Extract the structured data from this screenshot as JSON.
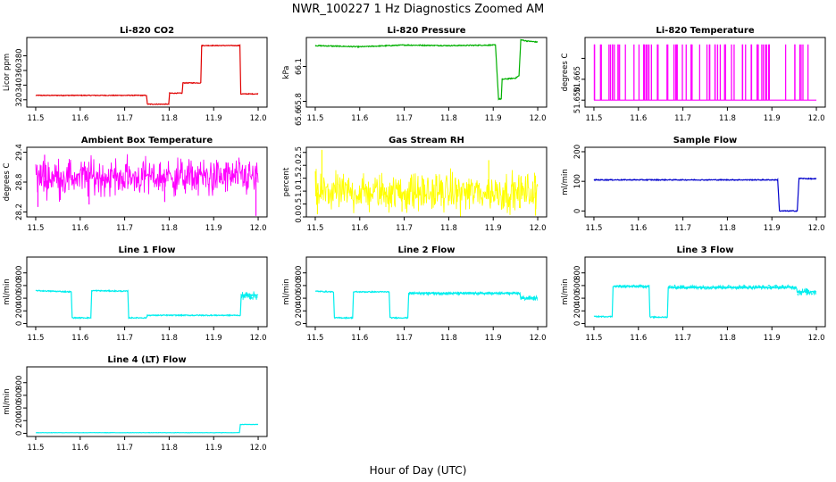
{
  "figure": {
    "title": "NWR_100227  1 Hz Diagnostics Zoomed AM",
    "xlabel": "Hour of Day (UTC)"
  },
  "chart_data": [
    {
      "id": "co2",
      "type": "line",
      "title": "Li-820 CO2",
      "ylabel": "Licor ppm",
      "color": "#e00000",
      "xlim": [
        11.48,
        12.02
      ],
      "ylim": [
        310,
        405
      ],
      "yticks": [
        320,
        340,
        360,
        380
      ],
      "xticks": [
        11.5,
        11.6,
        11.7,
        11.8,
        11.9,
        12.0
      ],
      "noise": 0.5,
      "points": [
        [
          11.5,
          326
        ],
        [
          11.749,
          326
        ],
        [
          11.751,
          314
        ],
        [
          11.799,
          314
        ],
        [
          11.801,
          329
        ],
        [
          11.829,
          329
        ],
        [
          11.831,
          343
        ],
        [
          11.871,
          343
        ],
        [
          11.873,
          394
        ],
        [
          11.959,
          394
        ],
        [
          11.961,
          328
        ],
        [
          12.0,
          328
        ]
      ]
    },
    {
      "id": "pressure",
      "type": "line",
      "title": "Li-820 Pressure",
      "ylabel": "kPa",
      "color": "#00b000",
      "xlim": [
        11.48,
        12.02
      ],
      "ylim": [
        65.75,
        66.35
      ],
      "yticks": [
        65.8,
        66.1
      ],
      "ytick_labels": [
        "65.8",
        "66.1"
      ],
      "extra_ytick_labels": [
        "65.6"
      ],
      "xticks": [
        11.5,
        11.6,
        11.7,
        11.8,
        11.9,
        12.0
      ],
      "noise": 0.004,
      "points": [
        [
          11.5,
          66.28
        ],
        [
          11.6,
          66.27
        ],
        [
          11.7,
          66.285
        ],
        [
          11.8,
          66.28
        ],
        [
          11.905,
          66.285
        ],
        [
          11.912,
          65.82
        ],
        [
          11.918,
          65.82
        ],
        [
          11.92,
          65.99
        ],
        [
          11.95,
          66.0
        ],
        [
          11.958,
          66.02
        ],
        [
          11.962,
          66.33
        ],
        [
          11.975,
          66.32
        ],
        [
          12.0,
          66.31
        ]
      ]
    },
    {
      "id": "li820temp",
      "type": "flicker",
      "title": "Li-820 Temperature",
      "ylabel": "degrees C",
      "color": "#ff00ff",
      "xlim": [
        11.48,
        12.02
      ],
      "ylim": [
        51.645,
        51.695
      ],
      "yticks": [
        51.65,
        51.665,
        51.68
      ],
      "ytick_labels": [
        "51.650",
        "51.665",
        ""
      ],
      "low": 51.65,
      "high": 51.69,
      "xticks": [
        11.5,
        11.6,
        11.7,
        11.8,
        11.9,
        12.0
      ],
      "flicker_count": 70
    },
    {
      "id": "ambient",
      "type": "noise",
      "title": "Ambient Box Temperature",
      "ylabel": "degrees C",
      "color": "#ff00ff",
      "xlim": [
        11.48,
        12.02
      ],
      "ylim": [
        28.1,
        29.5
      ],
      "yticks": [
        28.2,
        28.8,
        29.4
      ],
      "xticks": [
        11.5,
        11.6,
        11.7,
        11.8,
        11.9,
        12.0
      ],
      "mean": 28.9,
      "amp": 0.28,
      "spikes": [
        [
          11.505,
          28.3
        ],
        [
          11.62,
          28.35
        ],
        [
          11.79,
          28.4
        ],
        [
          11.995,
          28.12
        ],
        [
          11.52,
          29.35
        ]
      ]
    },
    {
      "id": "rh",
      "type": "noise",
      "title": "Gas Stream RH",
      "ylabel": "percent",
      "color": "#ffff00",
      "xlim": [
        11.48,
        12.02
      ],
      "ylim": [
        0.0,
        2.7
      ],
      "yticks": [
        0.0,
        0.5,
        1.0,
        1.5,
        2.0,
        2.5
      ],
      "xticks": [
        11.5,
        11.6,
        11.7,
        11.8,
        11.9,
        12.0
      ],
      "mean": 0.95,
      "amp": 0.55,
      "spikes": [
        [
          11.505,
          0.1
        ],
        [
          11.515,
          2.6
        ],
        [
          11.695,
          0.2
        ],
        [
          11.89,
          2.2
        ],
        [
          11.995,
          0.05
        ]
      ]
    },
    {
      "id": "sampleflow",
      "type": "line",
      "title": "Sample Flow",
      "ylabel": "ml/min",
      "color": "#0000cc",
      "xlim": [
        11.48,
        12.02
      ],
      "ylim": [
        -20,
        215
      ],
      "yticks": [
        0,
        100,
        200
      ],
      "xticks": [
        11.5,
        11.6,
        11.7,
        11.8,
        11.9,
        12.0
      ],
      "noise": 1.5,
      "points": [
        [
          11.5,
          105
        ],
        [
          11.913,
          105
        ],
        [
          11.917,
          0
        ],
        [
          11.957,
          0
        ],
        [
          11.961,
          110
        ],
        [
          12.0,
          108
        ]
      ]
    },
    {
      "id": "line1",
      "type": "line",
      "title": "Line 1 Flow",
      "ylabel": "ml/min",
      "color": "#00eeee",
      "xlim": [
        11.48,
        12.02
      ],
      "ylim": [
        -50,
        1050
      ],
      "yticks": [
        0,
        200,
        400,
        600,
        800
      ],
      "xticks": [
        11.5,
        11.6,
        11.7,
        11.8,
        11.9,
        12.0
      ],
      "noise": 8,
      "points": [
        [
          11.5,
          520
        ],
        [
          11.58,
          500
        ],
        [
          11.582,
          90
        ],
        [
          11.624,
          90
        ],
        [
          11.626,
          520
        ],
        [
          11.707,
          510
        ],
        [
          11.709,
          90
        ],
        [
          11.749,
          90
        ],
        [
          11.751,
          130
        ],
        [
          11.96,
          130
        ],
        [
          11.962,
          450
        ],
        [
          12.0,
          450
        ]
      ],
      "bands": [
        [
          11.962,
          12.0,
          370,
          510
        ]
      ]
    },
    {
      "id": "line2",
      "type": "line",
      "title": "Line 2 Flow",
      "ylabel": "ml/min",
      "color": "#00eeee",
      "xlim": [
        11.48,
        12.02
      ],
      "ylim": [
        -50,
        1050
      ],
      "yticks": [
        0,
        200,
        400,
        600,
        800
      ],
      "xticks": [
        11.5,
        11.6,
        11.7,
        11.8,
        11.9,
        12.0
      ],
      "noise": 8,
      "points": [
        [
          11.5,
          510
        ],
        [
          11.541,
          500
        ],
        [
          11.543,
          90
        ],
        [
          11.584,
          90
        ],
        [
          11.586,
          500
        ],
        [
          11.666,
          500
        ],
        [
          11.668,
          90
        ],
        [
          11.708,
          90
        ],
        [
          11.71,
          480
        ],
        [
          11.96,
          480
        ],
        [
          11.962,
          400
        ],
        [
          12.0,
          400
        ]
      ],
      "bands": [
        [
          11.71,
          11.96,
          450,
          500
        ],
        [
          11.962,
          12.0,
          360,
          440
        ]
      ]
    },
    {
      "id": "line3",
      "type": "line",
      "title": "Line 3 Flow",
      "ylabel": "ml/min",
      "color": "#00eeee",
      "xlim": [
        11.48,
        12.02
      ],
      "ylim": [
        -50,
        1050
      ],
      "yticks": [
        0,
        200,
        400,
        600,
        800
      ],
      "xticks": [
        11.5,
        11.6,
        11.7,
        11.8,
        11.9,
        12.0
      ],
      "noise": 8,
      "points": [
        [
          11.5,
          110
        ],
        [
          11.541,
          110
        ],
        [
          11.543,
          590
        ],
        [
          11.624,
          590
        ],
        [
          11.626,
          100
        ],
        [
          11.665,
          100
        ],
        [
          11.667,
          570
        ],
        [
          11.955,
          570
        ],
        [
          11.957,
          500
        ],
        [
          12.0,
          500
        ]
      ],
      "bands": [
        [
          11.543,
          11.624,
          560,
          610
        ],
        [
          11.667,
          11.955,
          540,
          610
        ],
        [
          11.957,
          12.0,
          440,
          560
        ]
      ]
    },
    {
      "id": "line4",
      "type": "line",
      "title": "Line 4 (LT) Flow",
      "ylabel": "ml/min",
      "color": "#00eeee",
      "xlim": [
        11.48,
        12.02
      ],
      "ylim": [
        -50,
        1050
      ],
      "yticks": [
        0,
        200,
        400,
        600,
        800
      ],
      "xticks": [
        11.5,
        11.6,
        11.7,
        11.8,
        11.9,
        12.0
      ],
      "noise": 2,
      "points": [
        [
          11.5,
          10
        ],
        [
          11.958,
          10
        ],
        [
          11.96,
          140
        ],
        [
          12.0,
          140
        ]
      ]
    }
  ]
}
